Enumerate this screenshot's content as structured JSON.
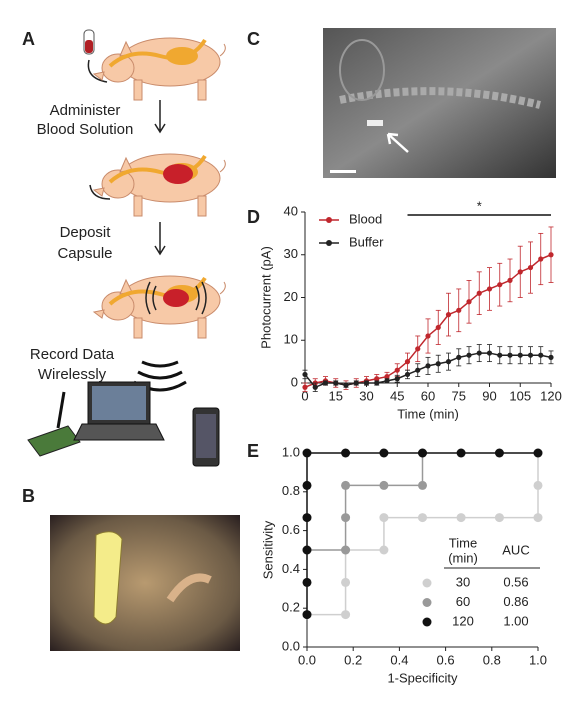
{
  "panels": {
    "A": {
      "label": "A",
      "steps": [
        [
          "Administer",
          "Blood Solution"
        ],
        [
          "Deposit",
          "Capsule"
        ],
        [
          "Record Data",
          "Wirelessly"
        ]
      ]
    },
    "B": {
      "label": "B"
    },
    "C": {
      "label": "C"
    },
    "D": {
      "label": "D"
    },
    "E": {
      "label": "E"
    }
  },
  "chart_data": [
    {
      "type": "line",
      "x_label": "Time (min)",
      "y_label": "Photocurrent (pA)",
      "x": [
        0,
        5,
        10,
        15,
        20,
        25,
        30,
        35,
        40,
        45,
        50,
        55,
        60,
        65,
        70,
        75,
        80,
        85,
        90,
        95,
        100,
        105,
        110,
        115,
        120
      ],
      "series": [
        {
          "name": "Blood",
          "color": "#c0272d",
          "values": [
            -1,
            0,
            0.5,
            0,
            -0.5,
            0,
            0.5,
            1,
            1.5,
            3,
            5,
            8,
            11,
            13,
            16,
            17,
            19,
            21,
            22,
            23,
            24,
            26,
            27,
            29,
            30
          ],
          "errors": [
            1,
            1,
            1,
            1,
            1,
            1,
            1,
            1,
            1,
            1.5,
            2,
            3,
            4,
            4,
            5,
            5,
            5,
            5,
            5,
            5,
            5,
            6,
            6,
            6,
            6.5
          ]
        },
        {
          "name": "Buffer",
          "color": "#222222",
          "values": [
            2,
            -1,
            0,
            0,
            -0.5,
            0,
            0,
            0,
            0.5,
            1,
            2,
            3,
            4,
            4.5,
            5,
            6,
            6.5,
            7,
            7,
            6.5,
            6.5,
            6.5,
            6.5,
            6.5,
            6
          ],
          "errors": [
            1,
            1,
            0.5,
            0.5,
            0.5,
            0.5,
            0.5,
            0.5,
            0.5,
            0.8,
            1,
            1.5,
            2,
            2,
            2,
            2,
            2,
            2,
            2,
            2,
            2,
            2,
            2,
            2,
            1.5
          ]
        }
      ],
      "annotation": {
        "text": "*",
        "x_range": [
          50,
          120
        ]
      },
      "xlim": [
        0,
        120
      ],
      "xticks": [
        0,
        15,
        30,
        45,
        60,
        75,
        90,
        105,
        120
      ],
      "ylim": [
        0,
        40
      ],
      "yticks": [
        0,
        10,
        20,
        30,
        40
      ],
      "legend": "upper-left"
    },
    {
      "type": "step",
      "x_label": "1-Specificity",
      "y_label": "Sensitivity",
      "legend_title": [
        "Time",
        "(min)"
      ],
      "auc_title": "AUC",
      "series": [
        {
          "name": "30",
          "color": "#cfcfcf",
          "auc": "0.56",
          "x": [
            0,
            0.167,
            0.167,
            0.167,
            0.333,
            0.333,
            0.5,
            0.667,
            0.833,
            1,
            1,
            1
          ],
          "values": [
            0.167,
            0.167,
            0.333,
            0.5,
            0.5,
            0.667,
            0.667,
            0.667,
            0.667,
            0.667,
            0.833,
            1
          ]
        },
        {
          "name": "60",
          "color": "#999999",
          "auc": "0.86",
          "x": [
            0,
            0.167,
            0.167,
            0.167,
            0.333,
            0.5,
            0.5
          ],
          "values": [
            0.5,
            0.5,
            0.667,
            0.833,
            0.833,
            0.833,
            1
          ]
        },
        {
          "name": "120",
          "color": "#111111",
          "auc": "1.00",
          "x": [
            0,
            0,
            0,
            0,
            0,
            0,
            0.167,
            0.333,
            0.5,
            0.667,
            0.833,
            1
          ],
          "values": [
            0.167,
            0.333,
            0.5,
            0.667,
            0.833,
            1,
            1,
            1,
            1,
            1,
            1,
            1
          ]
        }
      ],
      "xlim": [
        0,
        1
      ],
      "xticks": [
        {
          "value": 0,
          "label": "0.0"
        },
        {
          "value": 0.2,
          "label": "0.2"
        },
        {
          "value": 0.4,
          "label": "0.4"
        },
        {
          "value": 0.6,
          "label": "0.6"
        },
        {
          "value": 0.8,
          "label": "0.8"
        },
        {
          "value": 1,
          "label": "1.0"
        }
      ],
      "ylim": [
        0,
        1
      ],
      "yticks": [
        {
          "value": 0,
          "label": "0.0"
        },
        {
          "value": 0.2,
          "label": "0.2"
        },
        {
          "value": 0.4,
          "label": "0.4"
        },
        {
          "value": 0.6,
          "label": "0.6"
        },
        {
          "value": 0.8,
          "label": "0.8"
        },
        {
          "value": 1,
          "label": "1.0"
        }
      ]
    }
  ]
}
